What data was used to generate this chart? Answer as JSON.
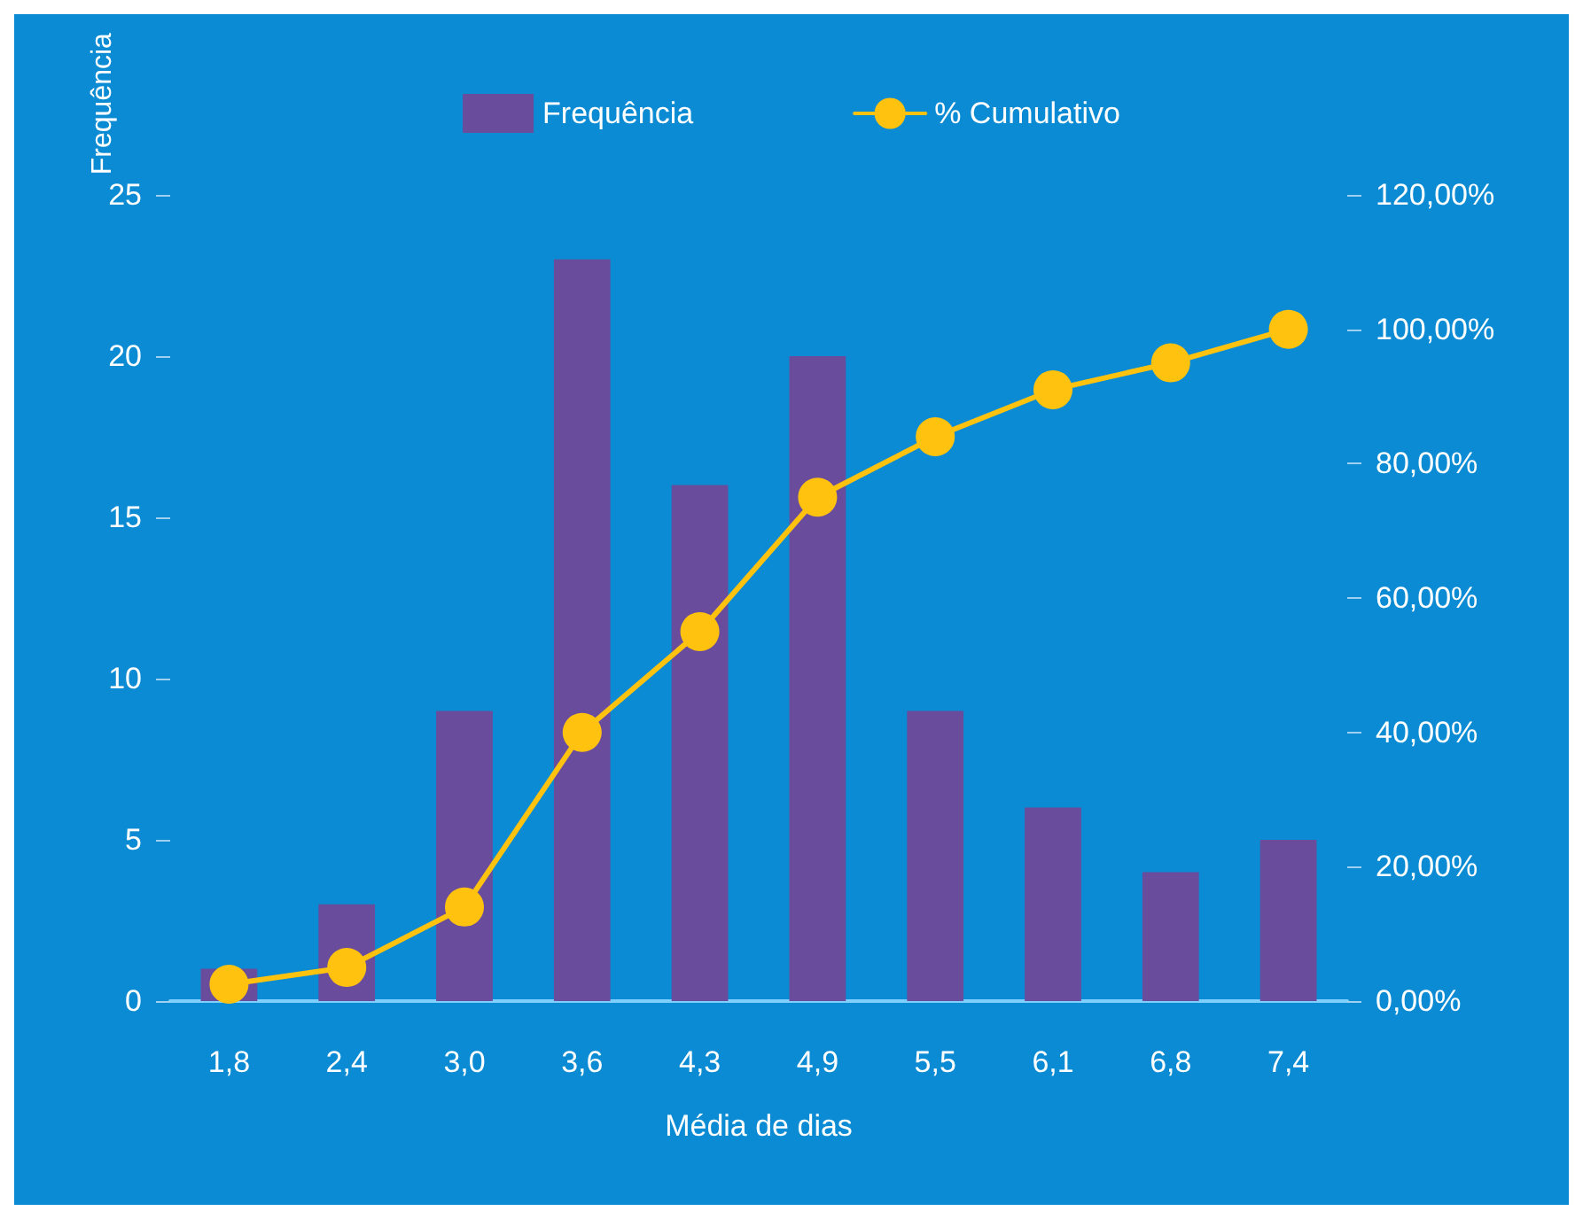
{
  "chart_data": {
    "type": "bar",
    "xlabel": "Média de dias",
    "ylabel": "Frequência",
    "categories": [
      "1,8",
      "2,4",
      "3,0",
      "3,6",
      "4,3",
      "4,9",
      "5,5",
      "6,1",
      "6,8",
      "7,4"
    ],
    "series": [
      {
        "name": "Frequência",
        "color": "#6a4c9c",
        "values": [
          1,
          3,
          9,
          23,
          16,
          20,
          9,
          6,
          4,
          5
        ]
      },
      {
        "name": "% Cumulativo",
        "type": "line",
        "axis": "y2",
        "color": "#ffc20e",
        "marker": "circle",
        "values": [
          2.5,
          5,
          14,
          40,
          55,
          75,
          84,
          91,
          95,
          100
        ]
      }
    ],
    "ylim": [
      0,
      25
    ],
    "yticks": [
      0,
      5,
      10,
      15,
      20,
      25
    ],
    "y2lim": [
      0,
      120
    ],
    "y2ticks": [
      {
        "value": 0,
        "label": "0,00%"
      },
      {
        "value": 20,
        "label": "20,00%"
      },
      {
        "value": 40,
        "label": "40,00%"
      },
      {
        "value": 60,
        "label": "60,00%"
      },
      {
        "value": 80,
        "label": "80,00%"
      },
      {
        "value": 100,
        "label": "100,00%"
      },
      {
        "value": 120,
        "label": "120,00%"
      }
    ],
    "grid": false,
    "legend": "top"
  }
}
